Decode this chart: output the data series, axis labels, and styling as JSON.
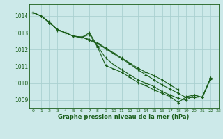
{
  "title": "Graphe pression niveau de la mer (hPa)",
  "bg_color": "#cce9e9",
  "grid_color": "#aad0d0",
  "line_color": "#1a5e1a",
  "marker_color": "#1a5e1a",
  "xlim": [
    -0.5,
    23
  ],
  "ylim": [
    1008.5,
    1014.7
  ],
  "yticks": [
    1009,
    1010,
    1011,
    1012,
    1013,
    1014
  ],
  "xticks": [
    0,
    1,
    2,
    3,
    4,
    5,
    6,
    7,
    8,
    9,
    10,
    11,
    12,
    13,
    14,
    15,
    16,
    17,
    18,
    19,
    20,
    21,
    22,
    23
  ],
  "series": [
    [
      1014.2,
      1014.0,
      1013.65,
      1013.15,
      1013.0,
      1012.8,
      1012.72,
      1012.9,
      1012.15,
      1011.05,
      1010.85,
      1010.65,
      1010.35,
      1010.05,
      1009.85,
      1009.6,
      1009.4,
      1009.2,
      1008.85,
      1009.2,
      1009.3,
      1009.15,
      1010.3,
      null
    ],
    [
      1014.2,
      1014.0,
      1013.6,
      1013.2,
      1013.0,
      1012.8,
      1012.72,
      1013.0,
      1012.2,
      1011.5,
      1011.1,
      1010.8,
      1010.5,
      1010.2,
      1010.0,
      1009.8,
      1009.5,
      1009.3,
      1009.1,
      1009.0,
      1009.3,
      1009.15,
      1010.25,
      null
    ],
    [
      1014.2,
      1014.0,
      1013.6,
      1013.2,
      1013.0,
      1012.8,
      1012.75,
      1012.6,
      1012.4,
      1012.1,
      1011.8,
      1011.5,
      1011.2,
      1010.9,
      1010.65,
      1010.45,
      1010.2,
      1009.9,
      1009.6,
      null,
      null,
      null,
      null,
      null
    ],
    [
      1014.2,
      1014.0,
      1013.6,
      1013.2,
      1013.0,
      1012.8,
      1012.75,
      1012.55,
      1012.35,
      1012.05,
      1011.75,
      1011.45,
      1011.15,
      1010.8,
      1010.5,
      1010.2,
      1009.9,
      1009.65,
      1009.4,
      1009.15,
      1009.15,
      1009.2,
      1010.3,
      null
    ]
  ]
}
